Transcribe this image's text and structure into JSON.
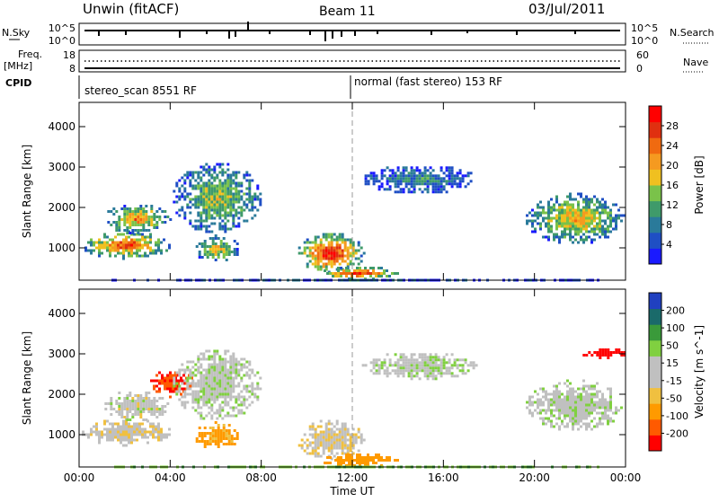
{
  "header": {
    "radar": "Unwin (fitACF)",
    "beam": "Beam 11",
    "date": "03/Jul/2011"
  },
  "status_panels": {
    "nsky_label": "N.Sky",
    "nsky_ticks": [
      "10^5",
      "10^0"
    ],
    "nsearch_label": "N.Search",
    "nsearch_ticks": [
      "10^5",
      "10^0"
    ],
    "freq_label": "Freq.",
    "freq_unit": "[MHz]",
    "freq_ticks": [
      "18",
      "8"
    ],
    "nave_label": "Nave",
    "nave_ticks": [
      "60",
      "0"
    ],
    "cpid_label": "CPID",
    "cpid_segments": [
      {
        "name": "stereo_scan 8551 RF",
        "start_hour": 0,
        "end_hour": 12
      },
      {
        "name": "normal (fast stereo) 153 RF",
        "start_hour": 12,
        "end_hour": 24
      }
    ]
  },
  "colors": {
    "power_scale": [
      "#1a1aff",
      "#1f4fc4",
      "#2a7a9a",
      "#3f9a6a",
      "#7ac24a",
      "#f0c020",
      "#f59a20",
      "#f06a10",
      "#e03010",
      "#ff0000"
    ],
    "velocity_scale": [
      "#ff0000",
      "#ff5a00",
      "#ff9a00",
      "#f0c040",
      "#c0c0c0",
      "#c0c0c0",
      "#80d040",
      "#3a9a3a",
      "#1a6a6a",
      "#2040c0"
    ]
  },
  "chart_data": [
    {
      "type": "heatmap",
      "title": "",
      "xlabel": "",
      "ylabel": "Slant Range [km]",
      "x": {
        "ticks": [
          "00:00",
          "04:00",
          "08:00",
          "12:00",
          "16:00",
          "20:00",
          "00:00"
        ],
        "range_hours": [
          0,
          24
        ]
      },
      "y": {
        "ticks": [
          1000,
          2000,
          3000,
          4000
        ],
        "range": [
          200,
          4600
        ]
      },
      "colorbar": {
        "label": "Power [dB]",
        "ticks": [
          "4",
          "8",
          "12",
          "16",
          "20",
          "24",
          "28"
        ],
        "range": [
          0,
          30
        ]
      },
      "vertical_marker_hour": 12,
      "echo_regions": [
        {
          "t": [
            0.0,
            4.0
          ],
          "r": [
            700,
            1500
          ],
          "peak_db": 26
        },
        {
          "t": [
            1.0,
            4.0
          ],
          "r": [
            1300,
            2200
          ],
          "peak_db": 22
        },
        {
          "t": [
            4.0,
            8.0
          ],
          "r": [
            1200,
            3300
          ],
          "peak_db": 16
        },
        {
          "t": [
            5.0,
            7.0
          ],
          "r": [
            600,
            1400
          ],
          "peak_db": 18
        },
        {
          "t": [
            9.5,
            12.5
          ],
          "r": [
            300,
            1500
          ],
          "peak_db": 30
        },
        {
          "t": [
            10.5,
            14.0
          ],
          "r": [
            200,
            600
          ],
          "peak_db": 28
        },
        {
          "t": [
            12.3,
            17.5
          ],
          "r": [
            2300,
            3150
          ],
          "peak_db": 10
        },
        {
          "t": [
            19.5,
            24.0
          ],
          "r": [
            1000,
            2500
          ],
          "peak_db": 20
        },
        {
          "t": [
            0.0,
            24.0
          ],
          "r": [
            200,
            300
          ],
          "peak_db": 8
        }
      ]
    },
    {
      "type": "heatmap",
      "title": "",
      "xlabel": "Time UT",
      "ylabel": "Slant Range [km]",
      "x": {
        "ticks": [
          "00:00",
          "04:00",
          "08:00",
          "12:00",
          "16:00",
          "20:00",
          "00:00"
        ],
        "range_hours": [
          0,
          24
        ]
      },
      "y": {
        "ticks": [
          1000,
          2000,
          3000,
          4000
        ],
        "range": [
          200,
          4600
        ]
      },
      "colorbar": {
        "label": "Velocity [m s^-1]",
        "ticks": [
          "200",
          "100",
          "50",
          "15",
          "-15",
          "-50",
          "-100",
          "-200"
        ],
        "range": [
          -250,
          250
        ]
      },
      "vertical_marker_hour": 12,
      "echo_regions": [
        {
          "t": [
            0.0,
            4.0
          ],
          "r": [
            700,
            1500
          ],
          "vel": -5
        },
        {
          "t": [
            1.0,
            4.0
          ],
          "r": [
            1300,
            2200
          ],
          "vel": 0
        },
        {
          "t": [
            3.0,
            5.0
          ],
          "r": [
            1900,
            2700
          ],
          "vel": -200
        },
        {
          "t": [
            4.0,
            8.0
          ],
          "r": [
            1200,
            3300
          ],
          "vel": 5
        },
        {
          "t": [
            5.0,
            7.0
          ],
          "r": [
            600,
            1400
          ],
          "vel": -60
        },
        {
          "t": [
            9.5,
            12.5
          ],
          "r": [
            300,
            1500
          ],
          "vel": -10
        },
        {
          "t": [
            10.5,
            14.0
          ],
          "r": [
            200,
            600
          ],
          "vel": -70
        },
        {
          "t": [
            12.3,
            17.5
          ],
          "r": [
            2300,
            3150
          ],
          "vel": 5
        },
        {
          "t": [
            19.5,
            24.0
          ],
          "r": [
            1000,
            2500
          ],
          "vel": 5
        },
        {
          "t": [
            22.0,
            24.0
          ],
          "r": [
            2900,
            3200
          ],
          "vel": -220
        },
        {
          "t": [
            0.0,
            24.0
          ],
          "r": [
            200,
            300
          ],
          "vel": 40
        }
      ]
    }
  ]
}
